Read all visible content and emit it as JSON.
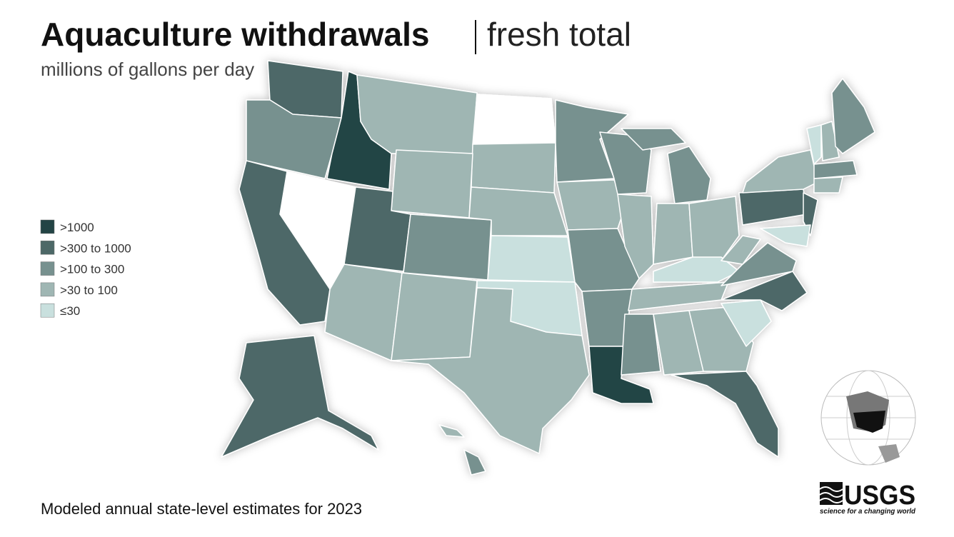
{
  "header": {
    "title": "Aquaculture withdrawals",
    "title_suffix": "fresh total",
    "subtitle": "millions of gallons per day"
  },
  "legend": {
    "items": [
      {
        "label": ">1000",
        "color": "#234445"
      },
      {
        "label": ">300 to 1000",
        "color": "#4d6867"
      },
      {
        "label": ">100 to 300",
        "color": "#77918f"
      },
      {
        "label": ">30 to 100",
        "color": "#9fb6b3"
      },
      {
        "label": "≤30",
        "color": "#c9e0de"
      }
    ]
  },
  "footer": {
    "note": "Modeled annual state-level estimates for 2023"
  },
  "logo": {
    "text": "USGS",
    "tagline": "science for a changing world"
  }
}
